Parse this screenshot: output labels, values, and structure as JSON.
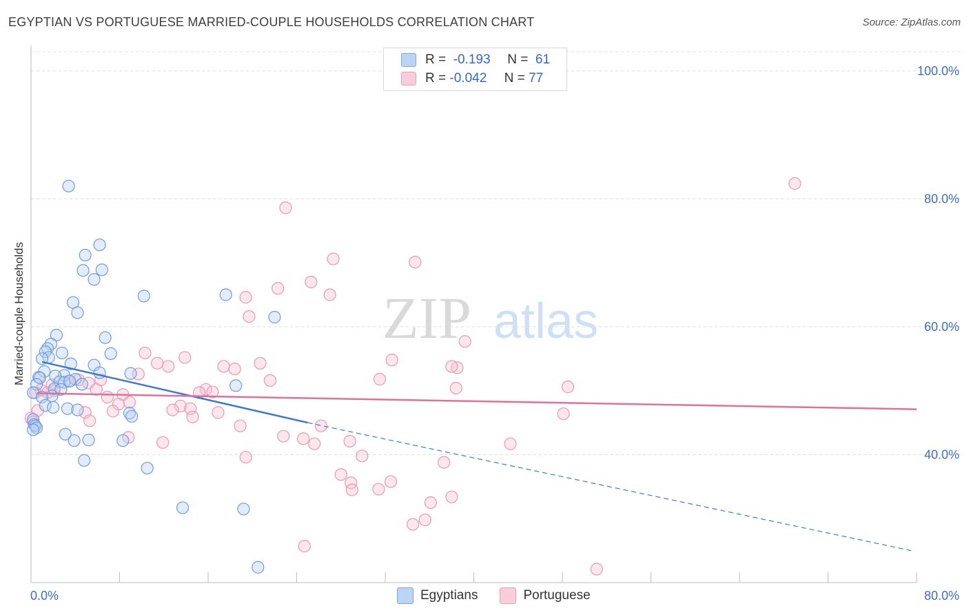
{
  "header": {
    "title": "EGYPTIAN VS PORTUGUESE MARRIED-COUPLE HOUSEHOLDS CORRELATION CHART",
    "source": "Source: ZipAtlas.com"
  },
  "watermark": {
    "zip": "ZIP",
    "atlas": "atlas"
  },
  "legend": {
    "rows": [
      {
        "r_label": "R =",
        "r_value": "-0.193",
        "n_label": "N =",
        "n_value": "61",
        "color": "#a9c8f0"
      },
      {
        "r_label": "R =",
        "r_value": "-0.042",
        "n_label": "N =",
        "n_value": "77",
        "color": "#f5b8cb"
      }
    ]
  },
  "bottom_legend": [
    {
      "label": "Egyptians",
      "color": "#a9c8f0"
    },
    {
      "label": "Portuguese",
      "color": "#f5b8cb"
    }
  ],
  "chart_data": {
    "type": "scatter",
    "title": "EGYPTIAN VS PORTUGUESE MARRIED-COUPLE HOUSEHOLDS CORRELATION CHART",
    "xlabel": "",
    "ylabel": "Married-couple Households",
    "xlim": [
      0,
      80
    ],
    "ylim": [
      20,
      103
    ],
    "x_tick_labels": [
      "0.0%",
      "80.0%"
    ],
    "y_ticks": [
      40,
      60,
      80,
      100
    ],
    "y_tick_labels": [
      "40.0%",
      "60.0%",
      "80.0%",
      "100.0%"
    ],
    "grid": true,
    "colors": {
      "egyptians": "#3b78d6",
      "portuguese": "#e26f98",
      "axis_labels": "#3a6fc4"
    },
    "series": [
      {
        "name": "Egyptians",
        "r": -0.193,
        "n": 61,
        "trend": {
          "x_start": 1.0,
          "y_start": 54.5,
          "x_solid_end": 25.0,
          "y_solid_end": 45.0,
          "x_dash_end": 79.5,
          "y_dash_end": 25.0
        },
        "points": [
          [
            3.4,
            82.0
          ],
          [
            6.2,
            72.8
          ],
          [
            4.9,
            71.2
          ],
          [
            4.7,
            68.8
          ],
          [
            6.4,
            68.9
          ],
          [
            5.7,
            67.4
          ],
          [
            10.2,
            64.8
          ],
          [
            17.6,
            65.0
          ],
          [
            3.8,
            63.8
          ],
          [
            4.2,
            62.2
          ],
          [
            22.0,
            61.5
          ],
          [
            2.3,
            58.7
          ],
          [
            6.7,
            58.3
          ],
          [
            1.8,
            57.3
          ],
          [
            1.5,
            56.6
          ],
          [
            1.3,
            56.1
          ],
          [
            2.8,
            55.9
          ],
          [
            7.2,
            55.8
          ],
          [
            1.6,
            55.2
          ],
          [
            1.0,
            55.0
          ],
          [
            3.6,
            54.2
          ],
          [
            5.7,
            54.0
          ],
          [
            1.2,
            53.0
          ],
          [
            6.2,
            52.8
          ],
          [
            9.0,
            52.7
          ],
          [
            3.0,
            52.4
          ],
          [
            2.2,
            52.3
          ],
          [
            0.7,
            52.1
          ],
          [
            0.8,
            52.0
          ],
          [
            4.0,
            51.8
          ],
          [
            2.6,
            51.4
          ],
          [
            3.0,
            51.3
          ],
          [
            4.6,
            51.0
          ],
          [
            0.5,
            51.0
          ],
          [
            18.5,
            50.8
          ],
          [
            2.1,
            50.3
          ],
          [
            2.7,
            50.2
          ],
          [
            0.2,
            49.7
          ],
          [
            1.9,
            49.2
          ],
          [
            1.0,
            49.0
          ],
          [
            1.3,
            47.7
          ],
          [
            2.0,
            47.4
          ],
          [
            3.3,
            47.2
          ],
          [
            4.2,
            47.0
          ],
          [
            8.9,
            46.5
          ],
          [
            9.1,
            46.0
          ],
          [
            0.2,
            45.5
          ],
          [
            0.3,
            44.7
          ],
          [
            0.4,
            44.5
          ],
          [
            0.5,
            44.2
          ],
          [
            0.2,
            43.9
          ],
          [
            3.1,
            43.2
          ],
          [
            5.2,
            42.3
          ],
          [
            3.9,
            42.2
          ],
          [
            8.3,
            42.2
          ],
          [
            4.8,
            39.1
          ],
          [
            10.5,
            37.9
          ],
          [
            13.7,
            31.7
          ],
          [
            19.2,
            31.5
          ],
          [
            20.5,
            22.4
          ],
          [
            3.5,
            51.5
          ]
        ]
      },
      {
        "name": "Portuguese",
        "r": -0.042,
        "n": 77,
        "trend": {
          "x_start": 0.5,
          "y_start": 49.6,
          "x_end": 80.0,
          "y_end": 47.1
        },
        "points": [
          [
            69.0,
            82.4
          ],
          [
            23.0,
            78.6
          ],
          [
            27.3,
            70.6
          ],
          [
            34.7,
            70.1
          ],
          [
            25.3,
            67.0
          ],
          [
            22.3,
            66.0
          ],
          [
            27.0,
            65.0
          ],
          [
            19.4,
            64.6
          ],
          [
            19.7,
            61.6
          ],
          [
            39.2,
            57.7
          ],
          [
            10.3,
            55.9
          ],
          [
            13.9,
            55.2
          ],
          [
            32.6,
            54.8
          ],
          [
            20.7,
            54.3
          ],
          [
            11.4,
            54.3
          ],
          [
            12.4,
            53.8
          ],
          [
            17.4,
            53.8
          ],
          [
            38.5,
            53.6
          ],
          [
            18.4,
            53.4
          ],
          [
            38.0,
            53.8
          ],
          [
            9.7,
            52.6
          ],
          [
            31.5,
            51.8
          ],
          [
            21.6,
            51.6
          ],
          [
            6.3,
            51.7
          ],
          [
            4.3,
            51.7
          ],
          [
            5.2,
            51.2
          ],
          [
            3.4,
            51.5
          ],
          [
            1.9,
            50.9
          ],
          [
            48.5,
            50.6
          ],
          [
            38.4,
            50.4
          ],
          [
            5.9,
            50.2
          ],
          [
            2.1,
            50.0
          ],
          [
            0.9,
            50.1
          ],
          [
            1.5,
            49.7
          ],
          [
            15.8,
            50.2
          ],
          [
            16.4,
            49.8
          ],
          [
            15.2,
            49.7
          ],
          [
            8.3,
            49.4
          ],
          [
            6.9,
            49.0
          ],
          [
            0.4,
            49.7
          ],
          [
            8.9,
            48.2
          ],
          [
            7.9,
            47.9
          ],
          [
            13.5,
            47.6
          ],
          [
            14.4,
            47.2
          ],
          [
            12.8,
            47.0
          ],
          [
            7.4,
            46.8
          ],
          [
            0.6,
            46.9
          ],
          [
            4.9,
            46.6
          ],
          [
            16.9,
            46.6
          ],
          [
            48.1,
            46.4
          ],
          [
            14.6,
            45.9
          ],
          [
            0.0,
            45.7
          ],
          [
            0.2,
            45.1
          ],
          [
            5.3,
            45.3
          ],
          [
            18.9,
            44.5
          ],
          [
            26.2,
            44.5
          ],
          [
            22.8,
            42.9
          ],
          [
            24.6,
            42.5
          ],
          [
            8.8,
            42.7
          ],
          [
            28.8,
            42.1
          ],
          [
            25.6,
            41.7
          ],
          [
            11.9,
            41.9
          ],
          [
            43.3,
            41.7
          ],
          [
            19.4,
            39.6
          ],
          [
            29.9,
            39.8
          ],
          [
            37.3,
            38.8
          ],
          [
            28.0,
            36.9
          ],
          [
            32.5,
            35.8
          ],
          [
            28.9,
            35.6
          ],
          [
            29.0,
            34.5
          ],
          [
            31.4,
            34.6
          ],
          [
            38.0,
            33.4
          ],
          [
            36.1,
            32.5
          ],
          [
            35.6,
            29.8
          ],
          [
            34.5,
            29.1
          ],
          [
            24.7,
            25.7
          ],
          [
            51.1,
            22.1
          ]
        ]
      }
    ]
  }
}
